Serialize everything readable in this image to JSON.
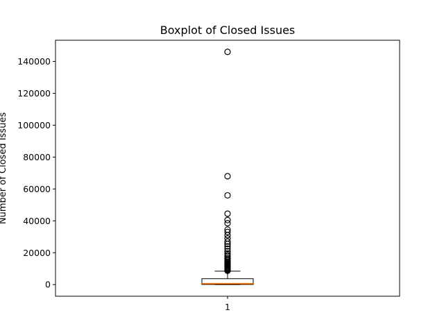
{
  "chart_data": {
    "type": "boxplot",
    "title": "Boxplot of Closed Issues",
    "xlabel": "",
    "ylabel": "Number of Closed Issues",
    "x_tick_labels": [
      "1"
    ],
    "y_ticks": [
      0,
      20000,
      40000,
      60000,
      80000,
      100000,
      120000,
      140000
    ],
    "y_tick_labels": [
      "0",
      "20000",
      "40000",
      "60000",
      "80000",
      "100000",
      "120000",
      "140000"
    ],
    "ylim": [
      -7300,
      153300
    ],
    "grid": false,
    "boxes": [
      {
        "label": "1",
        "whisker_low": 0,
        "q1": 100,
        "median": 700,
        "q3": 3700,
        "whisker_high": 8400,
        "outliers": [
          8700,
          9000,
          9400,
          9800,
          10200,
          10600,
          11000,
          11500,
          12000,
          12500,
          13000,
          13600,
          14200,
          15000,
          15800,
          16500,
          17500,
          18500,
          19500,
          21000,
          22500,
          24000,
          25500,
          27000,
          29000,
          31000,
          33000,
          34500,
          38500,
          40500,
          44500,
          56000,
          68000,
          146000
        ]
      }
    ],
    "colors": {
      "box": "#000000",
      "median": "#ff7f0e",
      "flier_edge": "#000000"
    }
  }
}
